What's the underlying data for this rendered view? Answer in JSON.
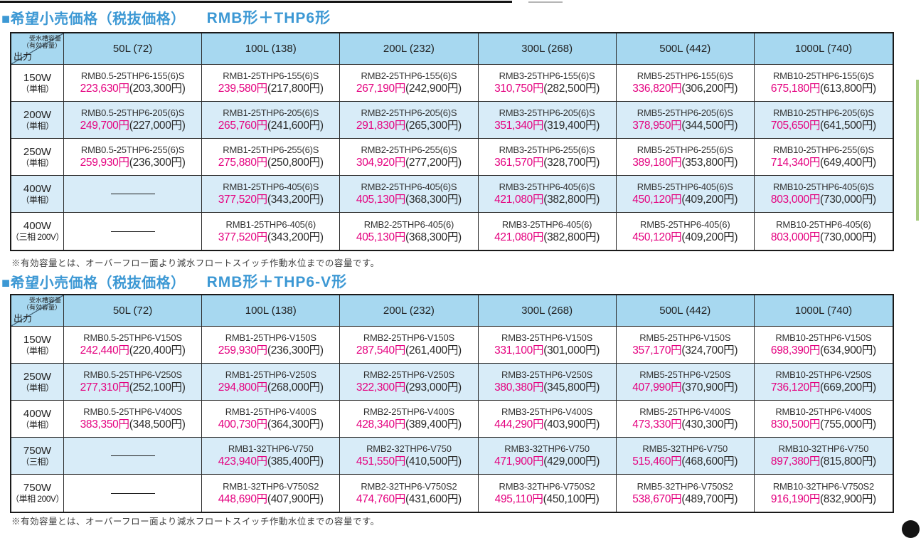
{
  "decorations": {
    "side_tab_color": "#a6cb7f",
    "title_color": "#3c98d4",
    "price_color": "#e4007f",
    "header_bg": "#a7d8f0",
    "alt_row_bg": "#d8ecf8"
  },
  "corner": {
    "top_line1": "受水槽容量",
    "top_line2": "（有効容量）",
    "bottom": "出力"
  },
  "columns": [
    "50L (72)",
    "100L (138)",
    "200L (232)",
    "300L (268)",
    "500L (442)",
    "1000L (740)"
  ],
  "tables": [
    {
      "title_label": "■希望小売価格（税抜価格）",
      "title_model": "RMB形＋THP6形",
      "note": "※有効容量とは、オーバーフロー面より減水フロートスイッチ作動水位までの容量です。",
      "rows": [
        {
          "watt": "150W",
          "phase": "（単相）",
          "blue": false,
          "cells": [
            {
              "model": "RMB0.5-25THP6-155(6)S",
              "price": "223,630円",
              "tax": "(203,300円)"
            },
            {
              "model": "RMB1-25THP6-155(6)S",
              "price": "239,580円",
              "tax": "(217,800円)"
            },
            {
              "model": "RMB2-25THP6-155(6)S",
              "price": "267,190円",
              "tax": "(242,900円)"
            },
            {
              "model": "RMB3-25THP6-155(6)S",
              "price": "310,750円",
              "tax": "(282,500円)"
            },
            {
              "model": "RMB5-25THP6-155(6)S",
              "price": "336,820円",
              "tax": "(306,200円)"
            },
            {
              "model": "RMB10-25THP6-155(6)S",
              "price": "675,180円",
              "tax": "(613,800円)"
            }
          ]
        },
        {
          "watt": "200W",
          "phase": "（単相）",
          "blue": true,
          "cells": [
            {
              "model": "RMB0.5-25THP6-205(6)S",
              "price": "249,700円",
              "tax": "(227,000円)"
            },
            {
              "model": "RMB1-25THP6-205(6)S",
              "price": "265,760円",
              "tax": "(241,600円)"
            },
            {
              "model": "RMB2-25THP6-205(6)S",
              "price": "291,830円",
              "tax": "(265,300円)"
            },
            {
              "model": "RMB3-25THP6-205(6)S",
              "price": "351,340円",
              "tax": "(319,400円)"
            },
            {
              "model": "RMB5-25THP6-205(6)S",
              "price": "378,950円",
              "tax": "(344,500円)"
            },
            {
              "model": "RMB10-25THP6-205(6)S",
              "price": "705,650円",
              "tax": "(641,500円)"
            }
          ]
        },
        {
          "watt": "250W",
          "phase": "（単相）",
          "blue": false,
          "cells": [
            {
              "model": "RMB0.5-25THP6-255(6)S",
              "price": "259,930円",
              "tax": "(236,300円)"
            },
            {
              "model": "RMB1-25THP6-255(6)S",
              "price": "275,880円",
              "tax": "(250,800円)"
            },
            {
              "model": "RMB2-25THP6-255(6)S",
              "price": "304,920円",
              "tax": "(277,200円)"
            },
            {
              "model": "RMB3-25THP6-255(6)S",
              "price": "361,570円",
              "tax": "(328,700円)"
            },
            {
              "model": "RMB5-25THP6-255(6)S",
              "price": "389,180円",
              "tax": "(353,800円)"
            },
            {
              "model": "RMB10-25THP6-255(6)S",
              "price": "714,340円",
              "tax": "(649,400円)"
            }
          ]
        },
        {
          "watt": "400W",
          "phase": "（単相）",
          "blue": true,
          "cells": [
            null,
            {
              "model": "RMB1-25THP6-405(6)S",
              "price": "377,520円",
              "tax": "(343,200円)"
            },
            {
              "model": "RMB2-25THP6-405(6)S",
              "price": "405,130円",
              "tax": "(368,300円)"
            },
            {
              "model": "RMB3-25THP6-405(6)S",
              "price": "421,080円",
              "tax": "(382,800円)"
            },
            {
              "model": "RMB5-25THP6-405(6)S",
              "price": "450,120円",
              "tax": "(409,200円)"
            },
            {
              "model": "RMB10-25THP6-405(6)S",
              "price": "803,000円",
              "tax": "(730,000円)"
            }
          ]
        },
        {
          "watt": "400W",
          "phase": "（三相 200V）",
          "blue": false,
          "cells": [
            null,
            {
              "model": "RMB1-25THP6-405(6)",
              "price": "377,520円",
              "tax": "(343,200円)"
            },
            {
              "model": "RMB2-25THP6-405(6)",
              "price": "405,130円",
              "tax": "(368,300円)"
            },
            {
              "model": "RMB3-25THP6-405(6)",
              "price": "421,080円",
              "tax": "(382,800円)"
            },
            {
              "model": "RMB5-25THP6-405(6)",
              "price": "450,120円",
              "tax": "(409,200円)"
            },
            {
              "model": "RMB10-25THP6-405(6)",
              "price": "803,000円",
              "tax": "(730,000円)"
            }
          ]
        }
      ]
    },
    {
      "title_label": "■希望小売価格（税抜価格）",
      "title_model": "RMB形＋THP6-V形",
      "note": "※有効容量とは、オーバーフロー面より減水フロートスイッチ作動水位までの容量です。",
      "rows": [
        {
          "watt": "150W",
          "phase": "（単相）",
          "blue": false,
          "cells": [
            {
              "model": "RMB0.5-25THP6-V150S",
              "price": "242,440円",
              "tax": "(220,400円)"
            },
            {
              "model": "RMB1-25THP6-V150S",
              "price": "259,930円",
              "tax": "(236,300円)"
            },
            {
              "model": "RMB2-25THP6-V150S",
              "price": "287,540円",
              "tax": "(261,400円)"
            },
            {
              "model": "RMB3-25THP6-V150S",
              "price": "331,100円",
              "tax": "(301,000円)"
            },
            {
              "model": "RMB5-25THP6-V150S",
              "price": "357,170円",
              "tax": "(324,700円)"
            },
            {
              "model": "RMB10-25THP6-V150S",
              "price": "698,390円",
              "tax": "(634,900円)"
            }
          ]
        },
        {
          "watt": "250W",
          "phase": "（単相）",
          "blue": true,
          "cells": [
            {
              "model": "RMB0.5-25THP6-V250S",
              "price": "277,310円",
              "tax": "(252,100円)"
            },
            {
              "model": "RMB1-25THP6-V250S",
              "price": "294,800円",
              "tax": "(268,000円)"
            },
            {
              "model": "RMB2-25THP6-V250S",
              "price": "322,300円",
              "tax": "(293,000円)"
            },
            {
              "model": "RMB3-25THP6-V250S",
              "price": "380,380円",
              "tax": "(345,800円)"
            },
            {
              "model": "RMB5-25THP6-V250S",
              "price": "407,990円",
              "tax": "(370,900円)"
            },
            {
              "model": "RMB10-25THP6-V250S",
              "price": "736,120円",
              "tax": "(669,200円)"
            }
          ]
        },
        {
          "watt": "400W",
          "phase": "（単相）",
          "blue": false,
          "cells": [
            {
              "model": "RMB0.5-25THP6-V400S",
              "price": "383,350円",
              "tax": "(348,500円)"
            },
            {
              "model": "RMB1-25THP6-V400S",
              "price": "400,730円",
              "tax": "(364,300円)"
            },
            {
              "model": "RMB2-25THP6-V400S",
              "price": "428,340円",
              "tax": "(389,400円)"
            },
            {
              "model": "RMB3-25THP6-V400S",
              "price": "444,290円",
              "tax": "(403,900円)"
            },
            {
              "model": "RMB5-25THP6-V400S",
              "price": "473,330円",
              "tax": "(430,300円)"
            },
            {
              "model": "RMB10-25THP6-V400S",
              "price": "830,500円",
              "tax": "(755,000円)"
            }
          ]
        },
        {
          "watt": "750W",
          "phase": "（三相）",
          "blue": true,
          "cells": [
            null,
            {
              "model": "RMB1-32THP6-V750",
              "price": "423,940円",
              "tax": "(385,400円)"
            },
            {
              "model": "RMB2-32THP6-V750",
              "price": "451,550円",
              "tax": "(410,500円)"
            },
            {
              "model": "RMB3-32THP6-V750",
              "price": "471,900円",
              "tax": "(429,000円)"
            },
            {
              "model": "RMB5-32THP6-V750",
              "price": "515,460円",
              "tax": "(468,600円)"
            },
            {
              "model": "RMB10-32THP6-V750",
              "price": "897,380円",
              "tax": "(815,800円)"
            }
          ]
        },
        {
          "watt": "750W",
          "phase": "（単相 200V）",
          "blue": false,
          "cells": [
            null,
            {
              "model": "RMB1-32THP6-V750S2",
              "price": "448,690円",
              "tax": "(407,900円)"
            },
            {
              "model": "RMB2-32THP6-V750S2",
              "price": "474,760円",
              "tax": "(431,600円)"
            },
            {
              "model": "RMB3-32THP6-V750S2",
              "price": "495,110円",
              "tax": "(450,100円)"
            },
            {
              "model": "RMB5-32THP6-V750S2",
              "price": "538,670円",
              "tax": "(489,700円)"
            },
            {
              "model": "RMB10-32THP6-V750S2",
              "price": "916,190円",
              "tax": "(832,900円)"
            }
          ]
        }
      ]
    }
  ]
}
